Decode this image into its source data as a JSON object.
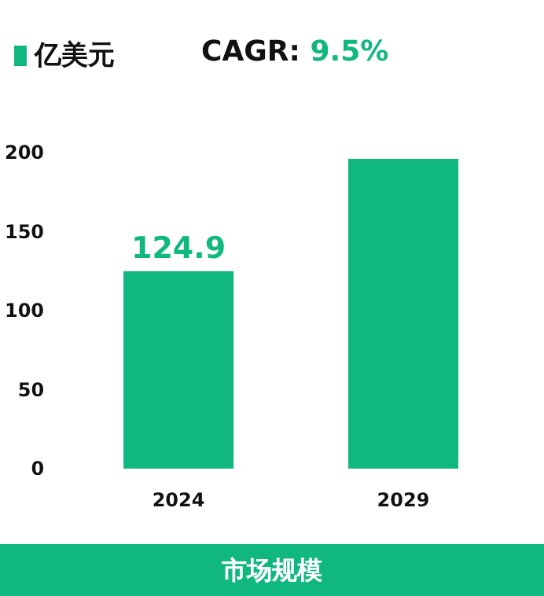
{
  "chart_data": {
    "type": "bar",
    "title": "市场规模",
    "categories": [
      "2024",
      "2029"
    ],
    "series": [
      {
        "name": "亿美元",
        "color": "#10b77f",
        "values": [
          124.9,
          196
        ],
        "value_labels": [
          "124.9",
          null
        ]
      }
    ],
    "ylim": [
      0,
      200
    ],
    "yticks": [
      0,
      50,
      100,
      150,
      200
    ],
    "grid": false,
    "legend": "top left",
    "annotations": [
      "CAGR: 9.5%"
    ]
  }
}
